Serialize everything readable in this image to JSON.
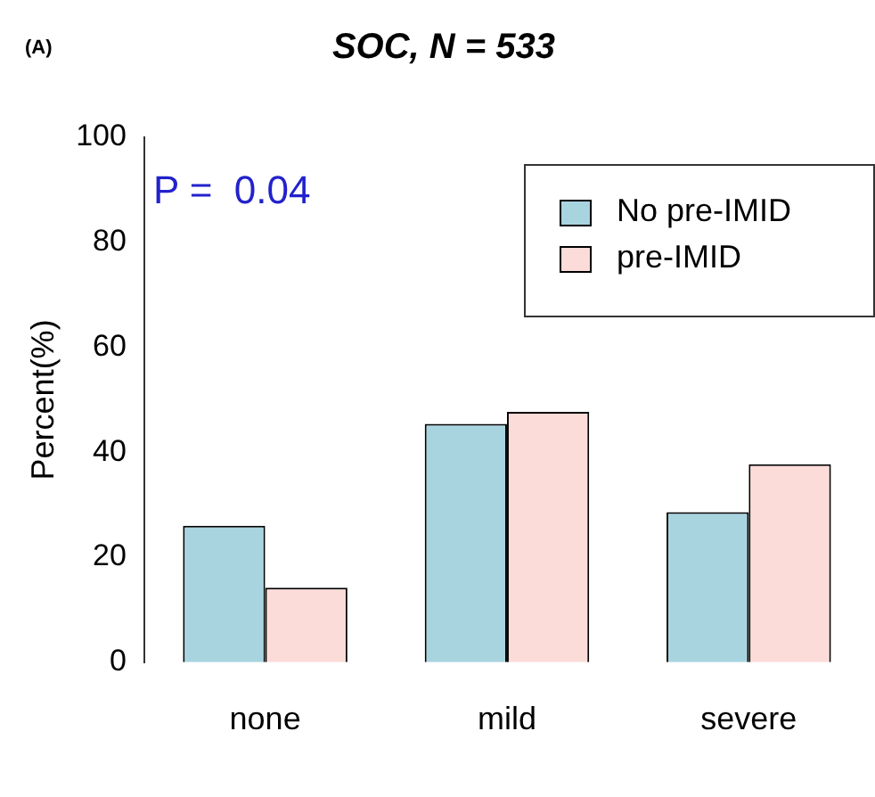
{
  "chart_data": {
    "type": "bar",
    "title": "SOC, N = 533",
    "ylabel": "Percent(%)",
    "categories": [
      "none",
      "mild",
      "severe"
    ],
    "series": [
      {
        "name": "No pre-IMID",
        "color": "#a8d4e0",
        "values": [
          26.0,
          45.4,
          28.6
        ]
      },
      {
        "name": "pre-IMID",
        "color": "#fbdcd8",
        "values": [
          14.2,
          47.7,
          37.7
        ]
      }
    ],
    "ylim": [
      0,
      100
    ],
    "yticks": [
      0,
      20,
      40,
      60,
      80,
      100
    ],
    "grid": false,
    "legend": "top right",
    "annotations": [
      "(A)",
      "P =  0.04"
    ]
  }
}
